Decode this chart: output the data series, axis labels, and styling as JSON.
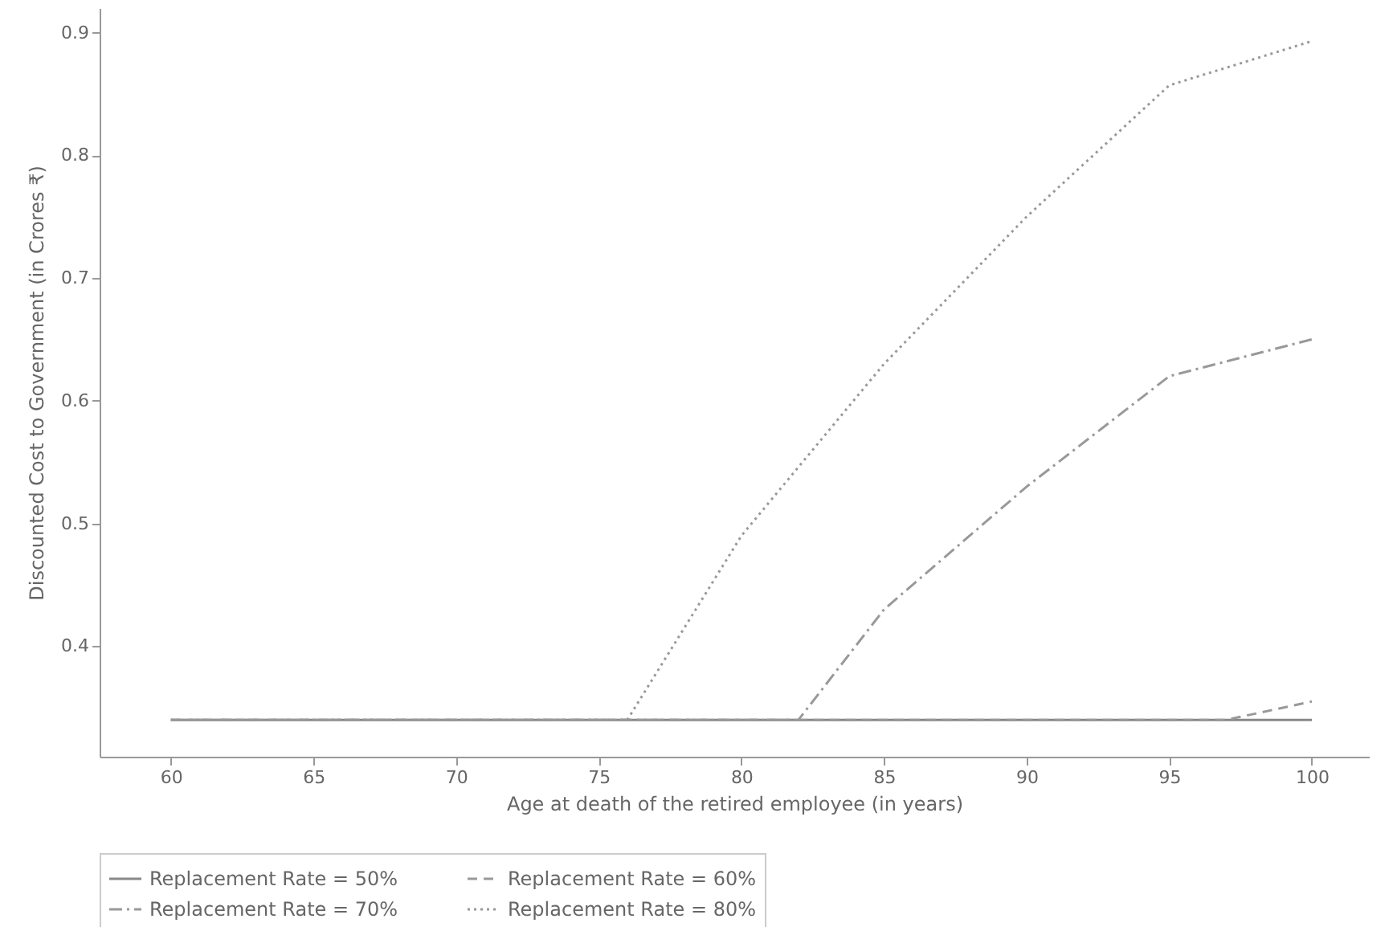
{
  "chart_data": {
    "type": "line",
    "xlabel": "Age at death of the retired employee (in years)",
    "ylabel": "Discounted Cost to Government (in Crores ₹)",
    "xlim": [
      57.5,
      102
    ],
    "ylim": [
      0.31,
      0.92
    ],
    "xticks": [
      60,
      65,
      70,
      75,
      80,
      85,
      90,
      95,
      100
    ],
    "yticks": [
      0.4,
      0.5,
      0.6,
      0.7,
      0.8,
      0.9
    ],
    "grid": false,
    "legend": "bottom",
    "marker": "none",
    "series": [
      {
        "name": "Replacement Rate = 50%",
        "color": "#888888",
        "line_style": "solid",
        "x": [
          60,
          100
        ],
        "values": [
          0.34,
          0.34
        ]
      },
      {
        "name": "Replacement Rate = 60%",
        "color": "#999999",
        "line_style": "dashed",
        "x": [
          60,
          97,
          100
        ],
        "values": [
          0.34,
          0.34,
          0.355
        ]
      },
      {
        "name": "Replacement Rate = 70%",
        "color": "#999999",
        "line_style": "dashdot",
        "x": [
          60,
          82,
          85,
          90,
          95,
          100
        ],
        "values": [
          0.34,
          0.34,
          0.43,
          0.53,
          0.62,
          0.65
        ]
      },
      {
        "name": "Replacement Rate = 80%",
        "color": "#999999",
        "line_style": "dotted",
        "x": [
          60,
          76,
          80,
          85,
          90,
          95,
          100
        ],
        "values": [
          0.34,
          0.34,
          0.49,
          0.63,
          0.75,
          0.857,
          0.893
        ]
      }
    ]
  }
}
